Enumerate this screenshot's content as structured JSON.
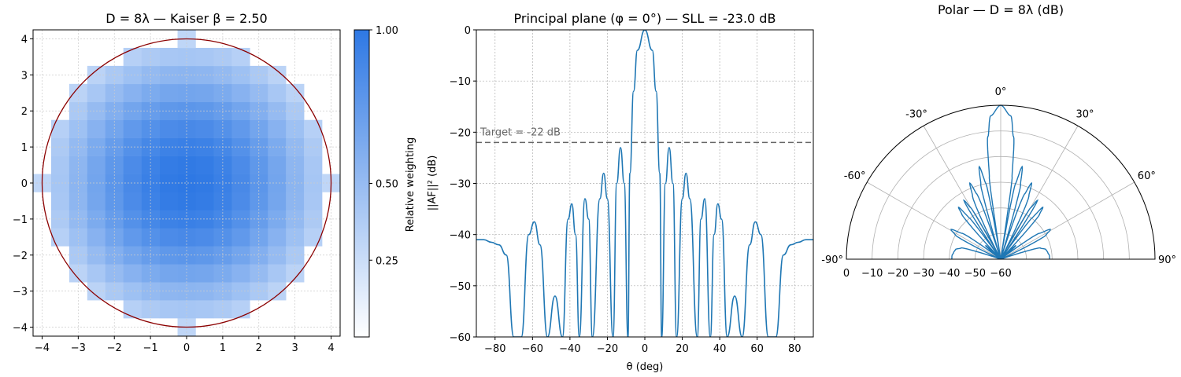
{
  "chart_data": [
    {
      "id": "aperture",
      "type": "heatmap",
      "title": "D = 8λ — Kaiser β = 2.50",
      "xlim": [
        -4.25,
        4.25
      ],
      "ylim": [
        -4.25,
        4.25
      ],
      "xticks": [
        -4,
        -3,
        -2,
        -1,
        0,
        1,
        2,
        3,
        4
      ],
      "yticks": [
        -4,
        -3,
        -2,
        -1,
        0,
        1,
        2,
        3,
        4
      ],
      "grid": true,
      "element_spacing": 0.5,
      "aperture_radius": 4,
      "kaiser_beta": 2.5,
      "circle_color": "#8b0000",
      "cmap": [
        "#ffffff",
        "#2e78e4"
      ],
      "colorbar": {
        "label": "Relative weighting",
        "range": [
          0.0,
          1.0
        ],
        "ticks": [
          0.25,
          0.5,
          1.0
        ],
        "ticklabels": [
          "0.25",
          "0.50",
          "1.00"
        ]
      }
    },
    {
      "id": "principal",
      "type": "line",
      "title": "Principal plane (φ = 0°) — SLL = -23.0 dB",
      "xlabel": "θ (deg)",
      "ylabel": "||AF||² (dB)",
      "xlim": [
        -90,
        90
      ],
      "ylim": [
        -60,
        0
      ],
      "xticks": [
        -80,
        -60,
        -40,
        -20,
        0,
        20,
        40,
        60,
        80
      ],
      "yticks": [
        -60,
        -50,
        -40,
        -30,
        -20,
        -10,
        0
      ],
      "ytick_labels": [
        "−60",
        "−50",
        "−40",
        "−30",
        "−20",
        "−10",
        "0"
      ],
      "xtick_labels": [
        "−80",
        "−60",
        "−40",
        "−20",
        "0",
        "20",
        "40",
        "60",
        "80"
      ],
      "grid": true,
      "sll_db": -23.0,
      "target": {
        "value": -22,
        "label": "Target = -22 dB",
        "color": "#666666"
      },
      "series": [
        {
          "color": "#1f77b4",
          "x": [
            0,
            4,
            6,
            8,
            9,
            11,
            13,
            15,
            17,
            20,
            22,
            24,
            28,
            30,
            32,
            35,
            37,
            39,
            41,
            44,
            48,
            52,
            56,
            59,
            62,
            66,
            70,
            74,
            78,
            82,
            86,
            90
          ],
          "y": [
            0,
            -4,
            -12,
            -28,
            -60,
            -30,
            -23,
            -30,
            -60,
            -33,
            -28,
            -33,
            -60,
            -37,
            -33,
            -60,
            -40,
            -34,
            -37,
            -60,
            -52,
            -60,
            -42,
            -37.5,
            -40,
            -60,
            -60,
            -44,
            -42,
            -41.5,
            -41,
            -41
          ]
        }
      ]
    },
    {
      "id": "polar",
      "type": "line",
      "subtype": "polar",
      "title": "Polar — D = 8λ (dB)",
      "theta_range": [
        -90,
        90
      ],
      "r_range": [
        -60,
        0
      ],
      "angle_ticks": [
        -90,
        -60,
        -30,
        0,
        30,
        60,
        90
      ],
      "angle_tick_labels": [
        "-90°",
        "-60°",
        "-30°",
        "0°",
        "30°",
        "60°",
        "90°"
      ],
      "r_ticks": [
        0,
        -10,
        -20,
        -30,
        -40,
        -50,
        -60
      ],
      "r_tick_labels": [
        "0",
        "−10",
        "−20",
        "−30",
        "−40",
        "−50",
        "−60"
      ],
      "grid": true,
      "series_color": "#1f77b4"
    }
  ]
}
